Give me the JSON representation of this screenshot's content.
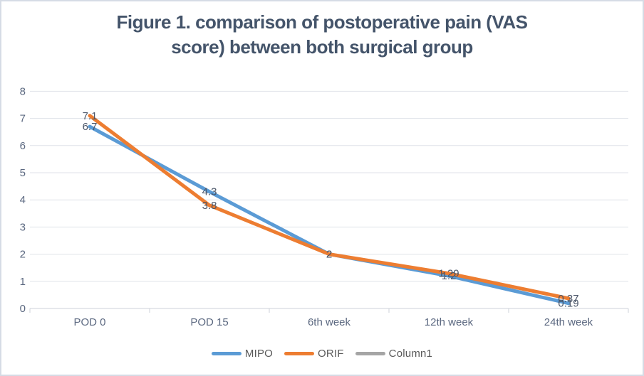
{
  "title": {
    "line1": "Figure 1. comparison of postoperative pain (VAS",
    "line2": "score) between both surgical group"
  },
  "chart_data": {
    "type": "line",
    "title": "Figure 1. comparison of postoperative pain (VAS score) between both surgical group",
    "categories": [
      "POD 0",
      "POD 15",
      "6th week",
      "12th week",
      "24th week"
    ],
    "series": [
      {
        "name": "MIPO",
        "color": "#5B9BD5",
        "values": [
          6.7,
          4.3,
          2,
          1.2,
          0.19
        ],
        "labels": [
          "6.7",
          "4.3",
          "2",
          "1.2",
          "0.19"
        ]
      },
      {
        "name": "ORIF",
        "color": "#ED7D31",
        "values": [
          7.1,
          3.8,
          2,
          1.29,
          0.37
        ],
        "labels": [
          "7.1",
          "3.8",
          "2",
          "1.29",
          "0.37"
        ]
      },
      {
        "name": "Column1",
        "color": "#A5A5A5",
        "values": [],
        "labels": []
      }
    ],
    "xlabel": "",
    "ylabel": "",
    "ylim": [
      0,
      8
    ],
    "y_ticks": [
      "0",
      "1",
      "2",
      "3",
      "4",
      "5",
      "6",
      "7",
      "8"
    ],
    "grid": true,
    "legend_position": "bottom",
    "data_label_position": "center"
  },
  "colors": {
    "title_text": "#44546A",
    "axis_text": "#5B6880",
    "data_label_text": "#4A5568",
    "gridline": "#DFE2E8",
    "axis_line": "#CDD2DA",
    "border": "#D6DCE5",
    "legend_text": "#595959",
    "background": "#FFFFFF"
  }
}
